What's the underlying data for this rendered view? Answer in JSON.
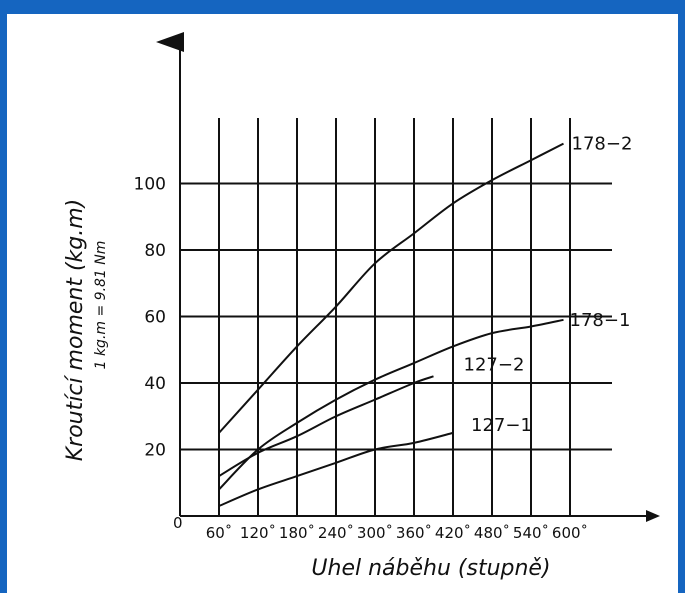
{
  "theme": {
    "frame_color": "#1565c0",
    "ink": "#111111"
  },
  "chart_data": {
    "type": "line",
    "xlabel": "Uhel náběhu (stupně)",
    "ylabel": "Kroutící moment   (kg.m)",
    "ylabel_note": "1 kg.m = 9.81 Nm",
    "origin_label": "0",
    "x_ticks": [
      60,
      120,
      180,
      240,
      300,
      360,
      420,
      480,
      540,
      600
    ],
    "x_tick_labels": [
      "60˚",
      "120˚",
      "180˚",
      "240˚",
      "300˚",
      "360˚",
      "420˚",
      "480˚",
      "540˚",
      "600˚"
    ],
    "y_ticks": [
      20,
      40,
      60,
      80,
      100
    ],
    "y_tick_labels": [
      "20",
      "40",
      "60",
      "80",
      "100"
    ],
    "xlim": [
      0,
      660
    ],
    "ylim": [
      0,
      125
    ],
    "grid": true,
    "series": [
      {
        "name": "178−2",
        "x": [
          60,
          120,
          180,
          240,
          300,
          360,
          420,
          480,
          540,
          590
        ],
        "y": [
          25,
          38,
          51,
          63,
          76,
          85,
          94,
          101,
          107,
          112
        ]
      },
      {
        "name": "178−1",
        "x": [
          60,
          120,
          180,
          240,
          300,
          360,
          420,
          480,
          540,
          590
        ],
        "y": [
          8,
          20,
          28,
          35,
          41,
          46,
          51,
          55,
          57,
          59
        ]
      },
      {
        "name": "127−2",
        "x": [
          60,
          120,
          180,
          240,
          300,
          360,
          390
        ],
        "y": [
          12,
          19,
          24,
          30,
          35,
          40,
          42
        ]
      },
      {
        "name": "127−1",
        "x": [
          60,
          120,
          180,
          240,
          300,
          360,
          420
        ],
        "y": [
          3,
          8,
          12,
          16,
          20,
          22,
          25
        ]
      }
    ]
  }
}
